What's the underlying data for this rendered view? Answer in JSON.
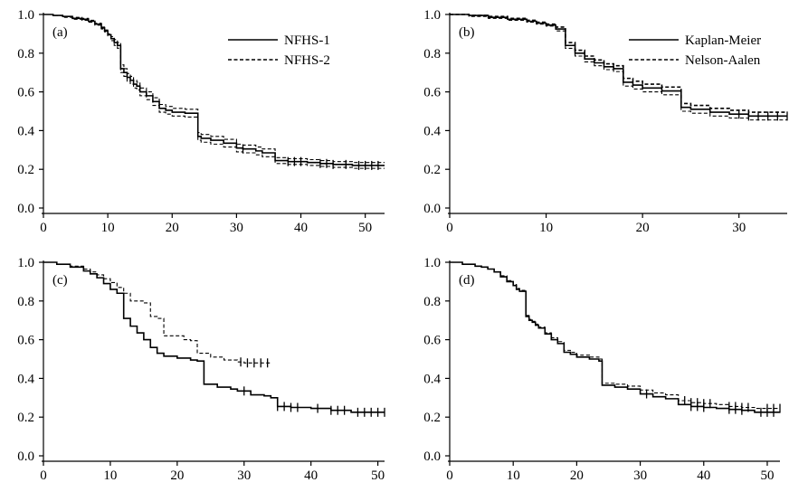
{
  "chart_data": [
    {
      "type": "line",
      "panel_label": "(a)",
      "xlim": [
        0,
        53
      ],
      "ylim": [
        0,
        1
      ],
      "xticks": [
        0,
        10,
        20,
        30,
        40,
        50
      ],
      "xtick_labels": [
        "0",
        "10",
        "20",
        "30",
        "40",
        "50"
      ],
      "yticks": [
        0,
        0.2,
        0.4,
        0.6,
        0.8,
        1.0
      ],
      "ytick_labels": [
        "0.0",
        "0.2",
        "0.4",
        "0.6",
        "0.8",
        "1.0"
      ],
      "legend_position": "top-right",
      "series": [
        {
          "name": "NFHS-1",
          "style": "solid",
          "color": "#000000",
          "x": [
            0,
            1.5,
            3,
            4.5,
            6,
            7,
            8,
            9,
            9.5,
            10,
            10.5,
            11,
            11.5,
            12,
            12.5,
            13,
            13.5,
            14,
            14.5,
            15,
            16,
            17,
            18,
            19,
            20,
            22,
            24,
            24.5,
            26,
            28,
            30,
            31,
            33,
            34,
            36,
            38,
            41,
            43,
            45,
            48,
            50,
            53
          ],
          "y": [
            1.0,
            0.995,
            0.99,
            0.98,
            0.975,
            0.965,
            0.95,
            0.93,
            0.915,
            0.895,
            0.875,
            0.855,
            0.84,
            0.72,
            0.7,
            0.675,
            0.66,
            0.64,
            0.63,
            0.6,
            0.58,
            0.55,
            0.515,
            0.505,
            0.495,
            0.49,
            0.37,
            0.36,
            0.35,
            0.335,
            0.31,
            0.305,
            0.295,
            0.285,
            0.245,
            0.24,
            0.235,
            0.23,
            0.225,
            0.22,
            0.22,
            0.22
          ],
          "censor_x": [
            31,
            38,
            39,
            40,
            43,
            44,
            45,
            47,
            49,
            50,
            51,
            52
          ]
        },
        {
          "name": "NFHS-2",
          "style": "dashed",
          "color": "#000000",
          "x": [
            0,
            1.5,
            3,
            4.5,
            6,
            7,
            8,
            9,
            9.5,
            10,
            10.5,
            11,
            11.5,
            12,
            12.5,
            13,
            13.5,
            14,
            14.5,
            15,
            16,
            17,
            18,
            19,
            20,
            22,
            24,
            24.5,
            26,
            28,
            30,
            31,
            33,
            34,
            36,
            38,
            41,
            43,
            45,
            48,
            50,
            53
          ],
          "y": [
            1.0,
            0.995,
            0.99,
            0.985,
            0.98,
            0.97,
            0.955,
            0.935,
            0.92,
            0.9,
            0.885,
            0.87,
            0.855,
            0.74,
            0.72,
            0.695,
            0.68,
            0.66,
            0.65,
            0.62,
            0.6,
            0.57,
            0.535,
            0.525,
            0.515,
            0.51,
            0.39,
            0.38,
            0.37,
            0.355,
            0.33,
            0.325,
            0.315,
            0.305,
            0.26,
            0.255,
            0.25,
            0.245,
            0.24,
            0.235,
            0.235,
            0.235
          ],
          "censor_x": []
        },
        {
          "name": "",
          "style": "dashed",
          "color": "#000000",
          "x": [
            0,
            1.5,
            3,
            4.5,
            6,
            7,
            8,
            9,
            9.5,
            10,
            10.5,
            11,
            11.5,
            12,
            12.5,
            13,
            13.5,
            14,
            14.5,
            15,
            16,
            17,
            18,
            19,
            20,
            22,
            24,
            24.5,
            26,
            28,
            30,
            31,
            33,
            34,
            36,
            38,
            41,
            43,
            45,
            48,
            50,
            53
          ],
          "y": [
            1.0,
            0.995,
            0.985,
            0.975,
            0.97,
            0.96,
            0.945,
            0.925,
            0.91,
            0.89,
            0.865,
            0.84,
            0.825,
            0.7,
            0.68,
            0.655,
            0.64,
            0.62,
            0.61,
            0.58,
            0.56,
            0.53,
            0.495,
            0.485,
            0.475,
            0.47,
            0.35,
            0.34,
            0.33,
            0.315,
            0.29,
            0.285,
            0.275,
            0.265,
            0.23,
            0.225,
            0.22,
            0.215,
            0.21,
            0.205,
            0.205,
            0.205
          ],
          "censor_x": []
        }
      ]
    },
    {
      "type": "line",
      "panel_label": "(b)",
      "xlim": [
        0,
        35
      ],
      "ylim": [
        0,
        1
      ],
      "xticks": [
        0,
        10,
        20,
        30
      ],
      "xtick_labels": [
        "0",
        "10",
        "20",
        "30"
      ],
      "yticks": [
        0,
        0.2,
        0.4,
        0.6,
        0.8,
        1.0
      ],
      "ytick_labels": [
        "0.0",
        "0.2",
        "0.4",
        "0.6",
        "0.8",
        "1.0"
      ],
      "legend_position": "top-right",
      "series": [
        {
          "name": "Kaplan-Meier",
          "style": "solid",
          "color": "#000000",
          "x": [
            0,
            2,
            4,
            6,
            8,
            9,
            10,
            11,
            12,
            13,
            14,
            15,
            16,
            17,
            18,
            19,
            20,
            22,
            24,
            25,
            27,
            29,
            31,
            33,
            35
          ],
          "y": [
            1.0,
            0.995,
            0.985,
            0.975,
            0.965,
            0.955,
            0.945,
            0.925,
            0.84,
            0.8,
            0.77,
            0.75,
            0.73,
            0.72,
            0.65,
            0.635,
            0.62,
            0.605,
            0.52,
            0.51,
            0.495,
            0.485,
            0.475,
            0.475,
            0.475
          ],
          "censor_x": [
            30,
            31,
            32,
            33,
            34,
            35
          ]
        },
        {
          "name": "Nelson-Aalen",
          "style": "dashed",
          "color": "#000000",
          "x": [
            0,
            2,
            4,
            6,
            8,
            9,
            10,
            11,
            12,
            13,
            14,
            15,
            16,
            17,
            18,
            19,
            20,
            22,
            24,
            25,
            27,
            29,
            31,
            33,
            35
          ],
          "y": [
            1.0,
            0.995,
            0.99,
            0.98,
            0.97,
            0.96,
            0.95,
            0.935,
            0.855,
            0.815,
            0.785,
            0.765,
            0.745,
            0.735,
            0.67,
            0.655,
            0.64,
            0.625,
            0.54,
            0.53,
            0.515,
            0.505,
            0.495,
            0.495,
            0.495
          ],
          "censor_x": []
        },
        {
          "name": "",
          "style": "dashed",
          "color": "#000000",
          "x": [
            0,
            2,
            4,
            6,
            8,
            9,
            10,
            11,
            12,
            13,
            14,
            15,
            16,
            17,
            18,
            19,
            20,
            22,
            24,
            25,
            27,
            29,
            31,
            33,
            35
          ],
          "y": [
            1.0,
            0.99,
            0.98,
            0.97,
            0.96,
            0.95,
            0.94,
            0.915,
            0.825,
            0.785,
            0.755,
            0.735,
            0.715,
            0.705,
            0.63,
            0.615,
            0.6,
            0.585,
            0.5,
            0.49,
            0.475,
            0.465,
            0.455,
            0.455,
            0.455
          ],
          "censor_x": []
        }
      ]
    },
    {
      "type": "line",
      "panel_label": "(c)",
      "xlim": [
        0,
        51
      ],
      "ylim": [
        0,
        1
      ],
      "xticks": [
        0,
        10,
        20,
        30,
        40,
        50
      ],
      "xtick_labels": [
        "0",
        "10",
        "20",
        "30",
        "40",
        "50"
      ],
      "yticks": [
        0,
        0.2,
        0.4,
        0.6,
        0.8,
        1.0
      ],
      "ytick_labels": [
        "0.0",
        "0.2",
        "0.4",
        "0.6",
        "0.8",
        "1.0"
      ],
      "series": [
        {
          "name": "",
          "style": "solid",
          "color": "#000000",
          "x": [
            0,
            2,
            4,
            6,
            7,
            8,
            9,
            10,
            11,
            12,
            13,
            14,
            15,
            16,
            17,
            18,
            20,
            22,
            23,
            24,
            26,
            28,
            29,
            31,
            33,
            34,
            35,
            37,
            40,
            43,
            46,
            51
          ],
          "y": [
            1.0,
            0.99,
            0.975,
            0.955,
            0.94,
            0.92,
            0.89,
            0.86,
            0.84,
            0.71,
            0.67,
            0.635,
            0.6,
            0.56,
            0.53,
            0.515,
            0.505,
            0.495,
            0.49,
            0.37,
            0.355,
            0.345,
            0.335,
            0.315,
            0.31,
            0.3,
            0.255,
            0.25,
            0.245,
            0.235,
            0.225,
            0.225
          ],
          "censor_x": [
            30,
            35,
            36,
            37,
            38,
            41,
            43,
            44,
            45,
            47,
            48,
            49,
            50,
            51
          ]
        },
        {
          "name": "",
          "style": "dashed",
          "color": "#000000",
          "x": [
            0,
            2,
            4,
            6,
            7,
            8,
            9,
            10,
            11,
            12,
            13,
            15,
            16,
            17,
            18,
            21,
            22,
            23,
            25,
            27,
            29,
            30,
            34
          ],
          "y": [
            1.0,
            0.99,
            0.98,
            0.965,
            0.95,
            0.935,
            0.915,
            0.895,
            0.87,
            0.84,
            0.8,
            0.79,
            0.72,
            0.71,
            0.62,
            0.6,
            0.595,
            0.53,
            0.51,
            0.495,
            0.485,
            0.48,
            0.48
          ],
          "censor_x": [
            29.5,
            30.5,
            31.5,
            32.5,
            33.5
          ]
        }
      ]
    },
    {
      "type": "line",
      "panel_label": "(d)",
      "xlim": [
        0,
        52
      ],
      "ylim": [
        0,
        1
      ],
      "xticks": [
        0,
        10,
        20,
        30,
        40,
        50
      ],
      "xtick_labels": [
        "0",
        "10",
        "20",
        "30",
        "40",
        "50"
      ],
      "yticks": [
        0,
        0.2,
        0.4,
        0.6,
        0.8,
        1.0
      ],
      "ytick_labels": [
        "0.0",
        "0.2",
        "0.4",
        "0.6",
        "0.8",
        "1.0"
      ],
      "series": [
        {
          "name": "",
          "style": "solid",
          "color": "#000000",
          "x": [
            0,
            2,
            4,
            5,
            6,
            7,
            8,
            9,
            10,
            10.5,
            11,
            12,
            12.5,
            13,
            13.5,
            14,
            15,
            16,
            17,
            18,
            19,
            20,
            22,
            23.5,
            24,
            26,
            28,
            30,
            32,
            34,
            36,
            38,
            40,
            42,
            44,
            46,
            48,
            52
          ],
          "y": [
            1.0,
            0.99,
            0.98,
            0.975,
            0.965,
            0.95,
            0.925,
            0.9,
            0.88,
            0.86,
            0.85,
            0.72,
            0.7,
            0.69,
            0.675,
            0.66,
            0.63,
            0.6,
            0.58,
            0.535,
            0.525,
            0.51,
            0.5,
            0.49,
            0.365,
            0.355,
            0.345,
            0.32,
            0.305,
            0.295,
            0.265,
            0.255,
            0.25,
            0.245,
            0.24,
            0.235,
            0.225,
            0.225
          ],
          "censor_x": [
            31,
            38,
            39,
            40,
            44,
            45,
            46,
            49,
            50,
            51
          ]
        },
        {
          "name": "",
          "style": "dashed",
          "color": "#000000",
          "x": [
            0,
            2,
            4,
            5,
            6,
            7,
            8,
            9,
            10,
            10.5,
            11,
            12,
            12.5,
            13,
            13.5,
            14,
            15,
            16,
            17,
            18,
            19,
            20,
            22,
            23.5,
            24,
            26,
            28,
            30,
            32,
            34,
            36,
            38,
            40,
            42,
            44,
            46,
            48,
            52
          ],
          "y": [
            1.0,
            0.99,
            0.98,
            0.975,
            0.965,
            0.95,
            0.93,
            0.905,
            0.885,
            0.865,
            0.855,
            0.725,
            0.705,
            0.695,
            0.68,
            0.665,
            0.635,
            0.61,
            0.59,
            0.545,
            0.535,
            0.52,
            0.51,
            0.5,
            0.375,
            0.37,
            0.36,
            0.34,
            0.325,
            0.315,
            0.285,
            0.275,
            0.27,
            0.265,
            0.255,
            0.25,
            0.245,
            0.245
          ],
          "censor_x": [
            37,
            38,
            39,
            40,
            41,
            44,
            45,
            46,
            47,
            50,
            51,
            52
          ]
        }
      ]
    }
  ]
}
